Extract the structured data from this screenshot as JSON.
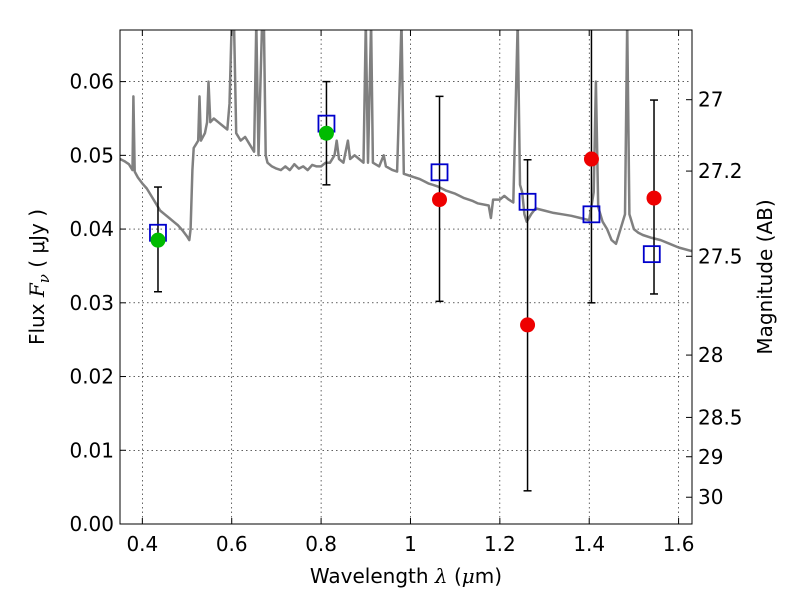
{
  "chart_data": {
    "type": "scatter",
    "xlabel_prefix": "Wavelength",
    "xlabel_symbol": "λ",
    "xlabel_unit_open": "(",
    "xlabel_unit_mu": "μ",
    "xlabel_unit_rest": "m)",
    "ylabel_prefix": "Flux",
    "ylabel_symbol": "F",
    "ylabel_subscript": "ν",
    "ylabel_unit": "( μJy )",
    "y2label": "Magnitude (AB)",
    "xlim": [
      0.35,
      1.63
    ],
    "ylim": [
      0,
      0.067
    ],
    "grid": true,
    "x_ticks": [
      0.4,
      0.6,
      0.8,
      1.0,
      1.2,
      1.4,
      1.6
    ],
    "x_tick_labels": [
      "0.4",
      "0.6",
      "0.8",
      "1",
      "1.2",
      "1.4",
      "1.6"
    ],
    "y_ticks": [
      0,
      0.01,
      0.02,
      0.03,
      0.04,
      0.05,
      0.06
    ],
    "y_tick_labels": [
      "0.00",
      "0.01",
      "0.02",
      "0.03",
      "0.04",
      "0.05",
      "0.06"
    ],
    "y2_ticks": [
      {
        "label": "27",
        "mag": 27.0
      },
      {
        "label": "27.2",
        "mag": 27.2
      },
      {
        "label": "27.5",
        "mag": 27.5
      },
      {
        "label": "28",
        "mag": 28.0
      },
      {
        "label": "28.5",
        "mag": 28.5
      },
      {
        "label": "29",
        "mag": 29.0
      },
      {
        "label": "30",
        "mag": 30.0
      }
    ],
    "colors": {
      "spectrum": "#808080",
      "model_box": "#0000cc",
      "green": "#00bb00",
      "red": "#ee0000",
      "errorbar": "#000000"
    },
    "spectrum": [
      [
        0.35,
        0.0495
      ],
      [
        0.36,
        0.0492
      ],
      [
        0.37,
        0.0488
      ],
      [
        0.378,
        0.048
      ],
      [
        0.38,
        0.058
      ],
      [
        0.383,
        0.0478
      ],
      [
        0.39,
        0.047
      ],
      [
        0.4,
        0.0462
      ],
      [
        0.41,
        0.0455
      ],
      [
        0.42,
        0.0445
      ],
      [
        0.43,
        0.0435
      ],
      [
        0.44,
        0.0425
      ],
      [
        0.45,
        0.042
      ],
      [
        0.46,
        0.0415
      ],
      [
        0.47,
        0.041
      ],
      [
        0.48,
        0.0405
      ],
      [
        0.49,
        0.0398
      ],
      [
        0.5,
        0.039
      ],
      [
        0.505,
        0.0385
      ],
      [
        0.508,
        0.04
      ],
      [
        0.512,
        0.048
      ],
      [
        0.515,
        0.051
      ],
      [
        0.52,
        0.0515
      ],
      [
        0.525,
        0.052
      ],
      [
        0.528,
        0.058
      ],
      [
        0.531,
        0.052
      ],
      [
        0.54,
        0.053
      ],
      [
        0.545,
        0.0545
      ],
      [
        0.548,
        0.06
      ],
      [
        0.552,
        0.0545
      ],
      [
        0.56,
        0.055
      ],
      [
        0.57,
        0.0545
      ],
      [
        0.58,
        0.054
      ],
      [
        0.59,
        0.0535
      ],
      [
        0.595,
        0.057
      ],
      [
        0.6,
        0.068
      ],
      [
        0.605,
        0.068
      ],
      [
        0.61,
        0.053
      ],
      [
        0.62,
        0.052
      ],
      [
        0.63,
        0.0525
      ],
      [
        0.64,
        0.0515
      ],
      [
        0.65,
        0.0505
      ],
      [
        0.655,
        0.068
      ],
      [
        0.66,
        0.05
      ],
      [
        0.668,
        0.068
      ],
      [
        0.672,
        0.068
      ],
      [
        0.676,
        0.05
      ],
      [
        0.68,
        0.049
      ],
      [
        0.69,
        0.0485
      ],
      [
        0.7,
        0.0482
      ],
      [
        0.71,
        0.048
      ],
      [
        0.72,
        0.0485
      ],
      [
        0.73,
        0.048
      ],
      [
        0.74,
        0.0488
      ],
      [
        0.75,
        0.0482
      ],
      [
        0.76,
        0.0485
      ],
      [
        0.77,
        0.048
      ],
      [
        0.78,
        0.0487
      ],
      [
        0.79,
        0.0485
      ],
      [
        0.8,
        0.0485
      ],
      [
        0.81,
        0.049
      ],
      [
        0.82,
        0.049
      ],
      [
        0.83,
        0.05
      ],
      [
        0.835,
        0.052
      ],
      [
        0.84,
        0.0495
      ],
      [
        0.85,
        0.049
      ],
      [
        0.86,
        0.052
      ],
      [
        0.865,
        0.0495
      ],
      [
        0.875,
        0.05
      ],
      [
        0.885,
        0.0495
      ],
      [
        0.895,
        0.049
      ],
      [
        0.9,
        0.068
      ],
      [
        0.905,
        0.049
      ],
      [
        0.912,
        0.068
      ],
      [
        0.916,
        0.049
      ],
      [
        0.93,
        0.0485
      ],
      [
        0.94,
        0.05
      ],
      [
        0.945,
        0.0485
      ],
      [
        0.96,
        0.048
      ],
      [
        0.97,
        0.0478
      ],
      [
        0.98,
        0.068
      ],
      [
        0.985,
        0.0475
      ],
      [
        1.0,
        0.0472
      ],
      [
        1.01,
        0.047
      ],
      [
        1.02,
        0.0468
      ],
      [
        1.03,
        0.0465
      ],
      [
        1.04,
        0.0462
      ],
      [
        1.05,
        0.046
      ],
      [
        1.06,
        0.0458
      ],
      [
        1.07,
        0.0455
      ],
      [
        1.08,
        0.0452
      ],
      [
        1.09,
        0.045
      ],
      [
        1.1,
        0.0448
      ],
      [
        1.11,
        0.0445
      ],
      [
        1.12,
        0.0442
      ],
      [
        1.13,
        0.044
      ],
      [
        1.14,
        0.0438
      ],
      [
        1.15,
        0.0435
      ],
      [
        1.175,
        0.0432
      ],
      [
        1.18,
        0.0415
      ],
      [
        1.185,
        0.044
      ],
      [
        1.2,
        0.044
      ],
      [
        1.21,
        0.0445
      ],
      [
        1.22,
        0.044
      ],
      [
        1.23,
        0.0436
      ],
      [
        1.24,
        0.068
      ],
      [
        1.245,
        0.046
      ],
      [
        1.25,
        0.045
      ],
      [
        1.255,
        0.042
      ],
      [
        1.26,
        0.041
      ],
      [
        1.27,
        0.042
      ],
      [
        1.28,
        0.0428
      ],
      [
        1.3,
        0.0425
      ],
      [
        1.32,
        0.0422
      ],
      [
        1.34,
        0.042
      ],
      [
        1.36,
        0.0418
      ],
      [
        1.38,
        0.0415
      ],
      [
        1.4,
        0.0412
      ],
      [
        1.41,
        0.045
      ],
      [
        1.415,
        0.06
      ],
      [
        1.42,
        0.043
      ],
      [
        1.43,
        0.041
      ],
      [
        1.44,
        0.04
      ],
      [
        1.45,
        0.0385
      ],
      [
        1.46,
        0.038
      ],
      [
        1.47,
        0.04
      ],
      [
        1.48,
        0.042
      ],
      [
        1.485,
        0.068
      ],
      [
        1.49,
        0.042
      ],
      [
        1.5,
        0.04
      ],
      [
        1.51,
        0.0395
      ],
      [
        1.52,
        0.0392
      ],
      [
        1.54,
        0.0388
      ],
      [
        1.56,
        0.0385
      ],
      [
        1.58,
        0.038
      ],
      [
        1.6,
        0.0375
      ],
      [
        1.63,
        0.037
      ]
    ],
    "model_boxes": [
      {
        "x": 0.435,
        "y": 0.0395
      },
      {
        "x": 0.812,
        "y": 0.0543
      },
      {
        "x": 1.065,
        "y": 0.0477
      },
      {
        "x": 1.262,
        "y": 0.0437
      },
      {
        "x": 1.405,
        "y": 0.042
      },
      {
        "x": 1.54,
        "y": 0.0366
      }
    ],
    "observed": [
      {
        "x": 0.435,
        "y": 0.0385,
        "yerr_low": 0.0315,
        "yerr_high": 0.0457,
        "color": "green"
      },
      {
        "x": 0.812,
        "y": 0.053,
        "yerr_low": 0.046,
        "yerr_high": 0.06,
        "color": "green"
      },
      {
        "x": 1.065,
        "y": 0.044,
        "yerr_low": 0.0302,
        "yerr_high": 0.058,
        "color": "red"
      },
      {
        "x": 1.262,
        "y": 0.027,
        "yerr_low": 0.0045,
        "yerr_high": 0.0494,
        "color": "red"
      },
      {
        "x": 1.405,
        "y": 0.0495,
        "yerr_low": 0.03,
        "yerr_high": 0.068,
        "color": "red"
      },
      {
        "x": 1.545,
        "y": 0.0442,
        "yerr_low": 0.0312,
        "yerr_high": 0.0575,
        "color": "red"
      }
    ]
  }
}
